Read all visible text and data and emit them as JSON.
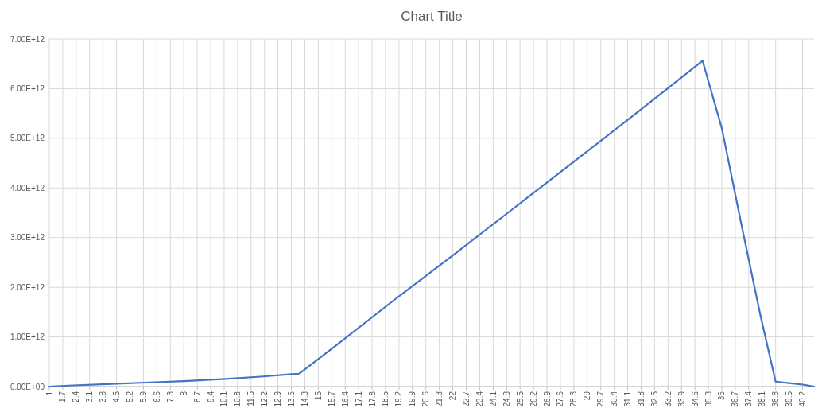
{
  "chart_data": {
    "type": "line",
    "title": "Chart Title",
    "x": [
      1,
      2,
      4,
      6,
      8,
      10,
      12,
      13.6,
      14.0,
      16,
      19.1,
      22,
      25,
      28,
      31,
      33,
      35.0,
      36,
      37,
      38,
      38.8,
      39.5,
      40.2,
      40.8
    ],
    "series": [
      {
        "color": "#4472c4",
        "values": [
          0,
          20000000000.0,
          50000000000.0,
          80000000000.0,
          110000000000.0,
          150000000000.0,
          200000000000.0,
          250000000000.0,
          260000000000.0,
          850000000000.0,
          1790000000000.0,
          2640000000000.0,
          3540000000000.0,
          4440000000000.0,
          5340000000000.0,
          5950000000000.0,
          6560000000000.0,
          5200000000000.0,
          3300000000000.0,
          1450000000000.0,
          100000000000.0,
          70000000000.0,
          40000000000.0,
          0.0
        ]
      }
    ],
    "xlim": [
      1,
      40.8
    ],
    "xticks": [
      1,
      1.7,
      2.4,
      3.1,
      3.8,
      4.5,
      5.2,
      5.9,
      6.6,
      7.3,
      8,
      8.7,
      9.4,
      10.1,
      10.8,
      11.5,
      12.2,
      12.9,
      13.6,
      14.3,
      15,
      15.7,
      16.4,
      17.1,
      17.8,
      18.5,
      19.2,
      19.9,
      20.6,
      21.3,
      22,
      22.7,
      23.4,
      24.1,
      24.8,
      25.5,
      26.2,
      26.9,
      27.6,
      28.3,
      29,
      29.7,
      30.4,
      31.1,
      31.8,
      32.5,
      33.2,
      33.9,
      34.6,
      35.3,
      36,
      36.7,
      37.4,
      38.1,
      38.8,
      39.5,
      40.2
    ],
    "ylim": [
      0,
      7000000000000.0
    ],
    "yticks": [
      {
        "value": 0,
        "label": "0.00E+00"
      },
      {
        "value": 1000000000000.0,
        "label": "1.00E+12"
      },
      {
        "value": 2000000000000.0,
        "label": "2.00E+12"
      },
      {
        "value": 3000000000000.0,
        "label": "3.00E+12"
      },
      {
        "value": 4000000000000.0,
        "label": "4.00E+12"
      },
      {
        "value": 5000000000000.0,
        "label": "5.00E+12"
      },
      {
        "value": 6000000000000.0,
        "label": "6.00E+12"
      },
      {
        "value": 7000000000000.0,
        "label": "7.00E+12"
      }
    ],
    "grid": true,
    "marker": "none",
    "line_style": "solid"
  }
}
